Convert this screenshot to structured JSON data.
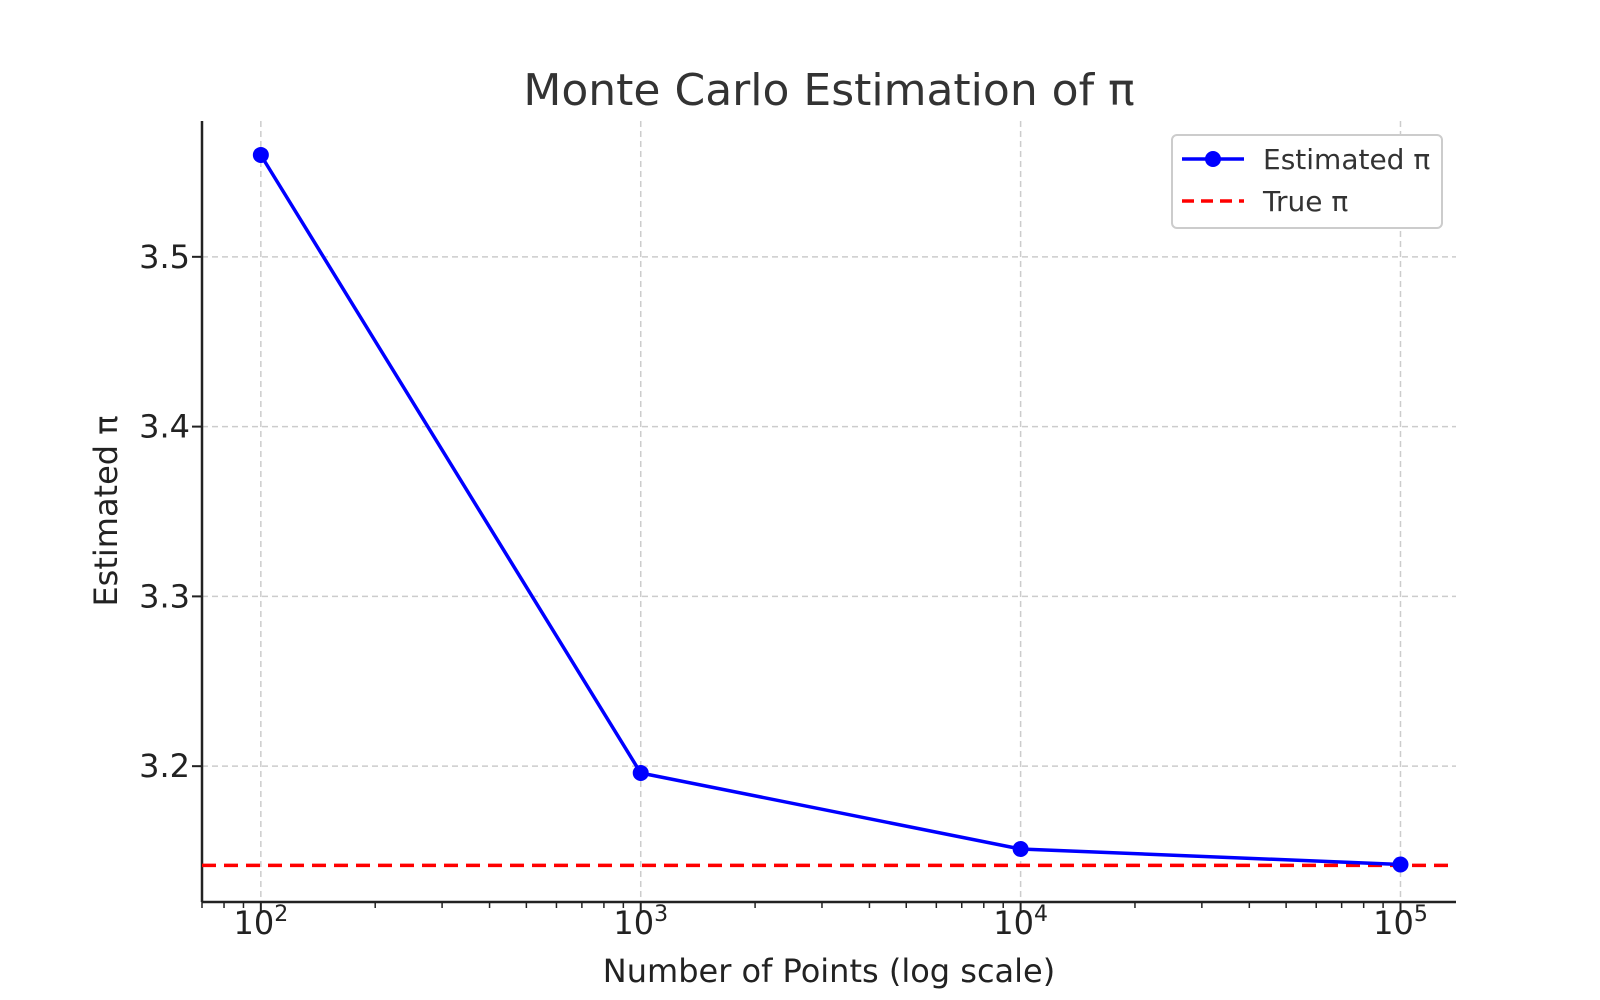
{
  "chart_data": {
    "type": "line",
    "title": "Monte Carlo Estimation of π",
    "xlabel": "Number of Points (log scale)",
    "ylabel": "Estimated π",
    "xscale": "log",
    "xlim": [
      70,
      140000
    ],
    "ylim": [
      3.12,
      3.58
    ],
    "grid": true,
    "legend_position": "top-right",
    "xticks": [
      {
        "value": 100,
        "base": "10",
        "exp": "2"
      },
      {
        "value": 1000,
        "base": "10",
        "exp": "3"
      },
      {
        "value": 10000,
        "base": "10",
        "exp": "4"
      },
      {
        "value": 100000,
        "base": "10",
        "exp": "5"
      }
    ],
    "yticks": [
      {
        "value": 3.2,
        "label": "3.2"
      },
      {
        "value": 3.3,
        "label": "3.3"
      },
      {
        "value": 3.4,
        "label": "3.4"
      },
      {
        "value": 3.5,
        "label": "3.5"
      }
    ],
    "series": [
      {
        "name": "Estimated π",
        "style": "line-marker",
        "color": "#0000ff",
        "x": [
          100,
          1000,
          10000,
          100000
        ],
        "y": [
          3.56,
          3.196,
          3.1512,
          3.1421
        ]
      },
      {
        "name": "True π",
        "style": "dashed-hline",
        "color": "#ff0000",
        "y": 3.14159
      }
    ]
  }
}
